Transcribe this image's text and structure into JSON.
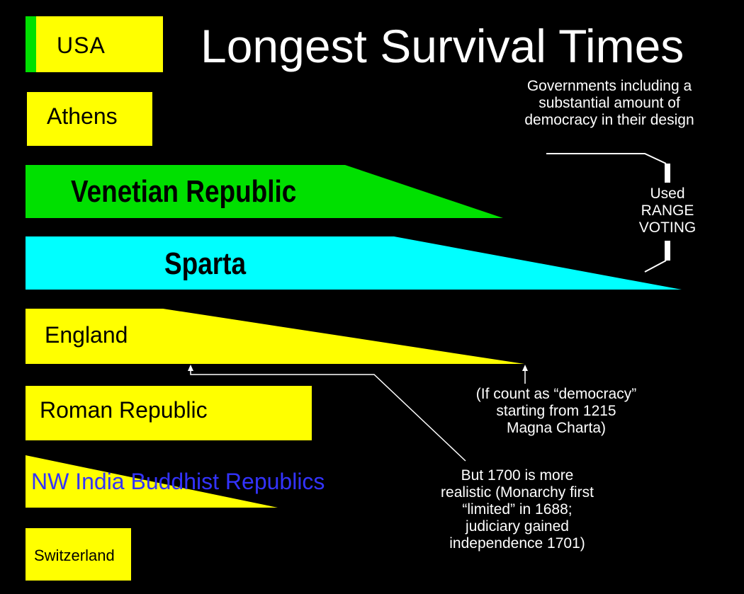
{
  "title": "Longest Survival Times",
  "colors": {
    "background": "#000000",
    "yellow": "#ffff00",
    "green": "#00e000",
    "cyan": "#00ffff",
    "blue_text": "#3333ff",
    "white": "#ffffff"
  },
  "bars": [
    {
      "id": "usa",
      "label": "USA",
      "shape": "rect",
      "fill": "yellow",
      "accent": "green"
    },
    {
      "id": "athens",
      "label": "Athens",
      "shape": "rect",
      "fill": "yellow"
    },
    {
      "id": "venice",
      "label": "Venetian Republic",
      "shape": "tapered",
      "fill": "green"
    },
    {
      "id": "sparta",
      "label": "Sparta",
      "shape": "tapered",
      "fill": "cyan"
    },
    {
      "id": "england",
      "label": "England",
      "shape": "tapered",
      "fill": "yellow"
    },
    {
      "id": "rome",
      "label": "Roman Republic",
      "shape": "rect",
      "fill": "yellow"
    },
    {
      "id": "india",
      "label": "NW India Buddhist Republics",
      "shape": "triangle",
      "fill": "yellow"
    },
    {
      "id": "switzerland",
      "label": "Switzerland",
      "shape": "rect",
      "fill": "yellow"
    }
  ],
  "notes": {
    "subtitle": "Governments including a\nsubstantial amount of\ndemocracy in their design",
    "range_voting": "Used\nRANGE\nVOTING",
    "magna_charta": "(If count as “democracy”\nstarting from 1215\nMagna Charta)",
    "realistic_1700": "But 1700 is more\nrealistic (Monarchy first\n“limited” in 1688;\njudiciary gained\nindependence 1701)"
  }
}
